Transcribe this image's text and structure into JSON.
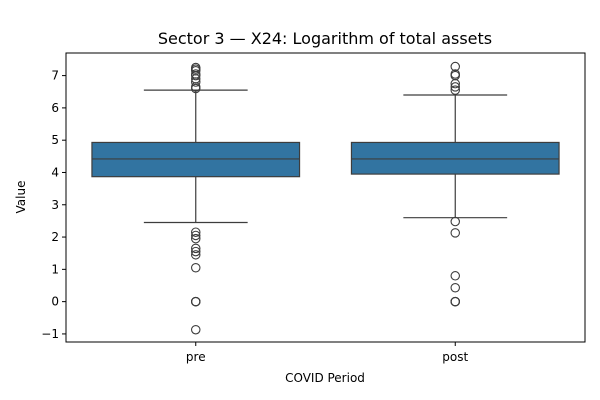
{
  "chart_data": {
    "type": "box",
    "title": "Sector 3 — X24: Logarithm of total assets",
    "xlabel": "COVID Period",
    "ylabel": "Value",
    "categories": [
      "pre",
      "post"
    ],
    "ylim": [
      -1.25,
      7.7
    ],
    "yticks": [
      -1,
      0,
      1,
      2,
      3,
      4,
      5,
      6,
      7
    ],
    "ytick_labels": [
      "−1",
      "0",
      "1",
      "2",
      "3",
      "4",
      "5",
      "6",
      "7"
    ],
    "grid": false,
    "legend": "none",
    "box_color": "#3274a1",
    "edge_color": "#3d3d3d",
    "boxes": [
      {
        "category": "pre",
        "whisker_low": 2.45,
        "q1": 3.87,
        "median": 4.42,
        "q3": 4.93,
        "whisker_high": 6.55,
        "outliers": [
          6.6,
          6.65,
          6.8,
          6.9,
          7.0,
          7.05,
          7.15,
          7.2,
          7.25,
          2.15,
          2.05,
          1.95,
          1.65,
          1.55,
          1.45,
          1.05,
          0.0,
          0.0,
          0.0,
          -0.87
        ]
      },
      {
        "category": "post",
        "whisker_low": 2.6,
        "q1": 3.95,
        "median": 4.42,
        "q3": 4.93,
        "whisker_high": 6.4,
        "outliers": [
          6.55,
          6.65,
          6.75,
          7.0,
          7.05,
          7.28,
          2.48,
          2.13,
          0.8,
          0.43,
          0.0,
          0.0,
          0.0
        ]
      }
    ]
  }
}
